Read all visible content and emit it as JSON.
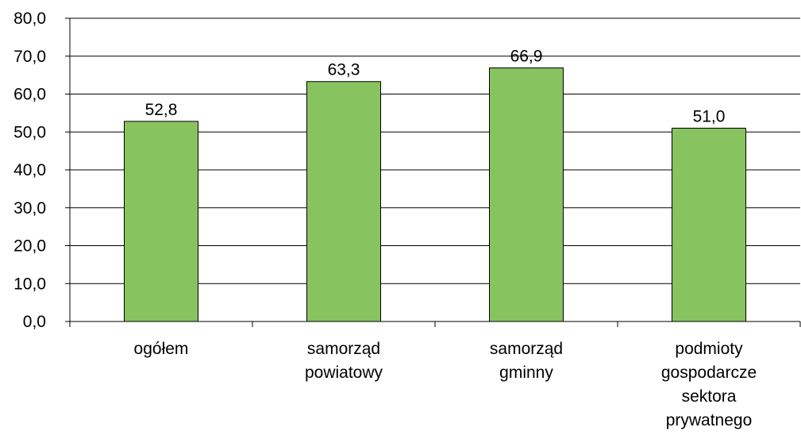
{
  "chart_data": {
    "type": "bar",
    "categories": [
      [
        "ogółem"
      ],
      [
        "samorząd",
        "powiatowy"
      ],
      [
        "samorząd",
        "gminny"
      ],
      [
        "podmioty",
        "gospodarcze",
        "sektora",
        "prywatnego"
      ]
    ],
    "values": [
      52.8,
      63.3,
      66.9,
      51.0
    ],
    "data_labels": [
      "52,8",
      "63,3",
      "66,9",
      "51,0"
    ],
    "yticks": [
      0,
      10,
      20,
      30,
      40,
      50,
      60,
      70,
      80
    ],
    "ytick_labels": [
      "0,0",
      "10,0",
      "20,0",
      "30,0",
      "40,0",
      "50,0",
      "60,0",
      "70,0",
      "80,0"
    ],
    "ylim": [
      0,
      80
    ],
    "grid": true,
    "bar_color": "#87c35f",
    "bar_edge_color": "#000000",
    "title": "",
    "xlabel": "",
    "ylabel": ""
  }
}
